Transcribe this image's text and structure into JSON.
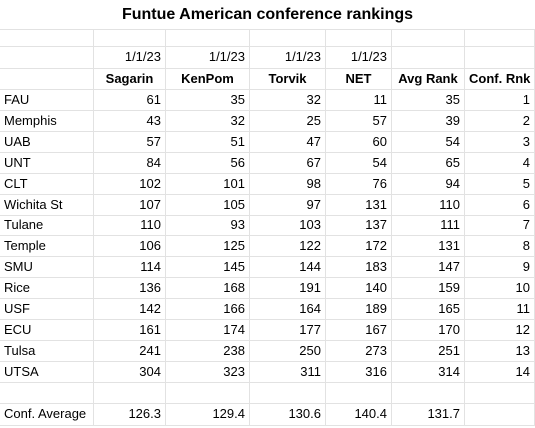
{
  "title": "Funtue American conference rankings",
  "date_row": [
    "",
    "1/1/23",
    "1/1/23",
    "1/1/23",
    "1/1/23",
    "",
    ""
  ],
  "headers": [
    "",
    "Sagarin",
    "KenPom",
    "Torvik",
    "NET",
    "Avg Rank",
    "Conf. Rnk"
  ],
  "rows": [
    [
      "FAU",
      "61",
      "35",
      "32",
      "11",
      "35",
      "1"
    ],
    [
      "Memphis",
      "43",
      "32",
      "25",
      "57",
      "39",
      "2"
    ],
    [
      "UAB",
      "57",
      "51",
      "47",
      "60",
      "54",
      "3"
    ],
    [
      "UNT",
      "84",
      "56",
      "67",
      "54",
      "65",
      "4"
    ],
    [
      "CLT",
      "102",
      "101",
      "98",
      "76",
      "94",
      "5"
    ],
    [
      "Wichita St",
      "107",
      "105",
      "97",
      "131",
      "110",
      "6"
    ],
    [
      "Tulane",
      "110",
      "93",
      "103",
      "137",
      "111",
      "7"
    ],
    [
      "Temple",
      "106",
      "125",
      "122",
      "172",
      "131",
      "8"
    ],
    [
      "SMU",
      "114",
      "145",
      "144",
      "183",
      "147",
      "9"
    ],
    [
      "Rice",
      "136",
      "168",
      "191",
      "140",
      "159",
      "10"
    ],
    [
      "USF",
      "142",
      "166",
      "164",
      "189",
      "165",
      "11"
    ],
    [
      "ECU",
      "161",
      "174",
      "177",
      "167",
      "170",
      "12"
    ],
    [
      "Tulsa",
      "241",
      "238",
      "250",
      "273",
      "251",
      "13"
    ],
    [
      "UTSA",
      "304",
      "323",
      "311",
      "316",
      "314",
      "14"
    ]
  ],
  "average_row": [
    "Conf. Average",
    "126.3",
    "129.4",
    "130.6",
    "140.4",
    "131.7",
    ""
  ]
}
